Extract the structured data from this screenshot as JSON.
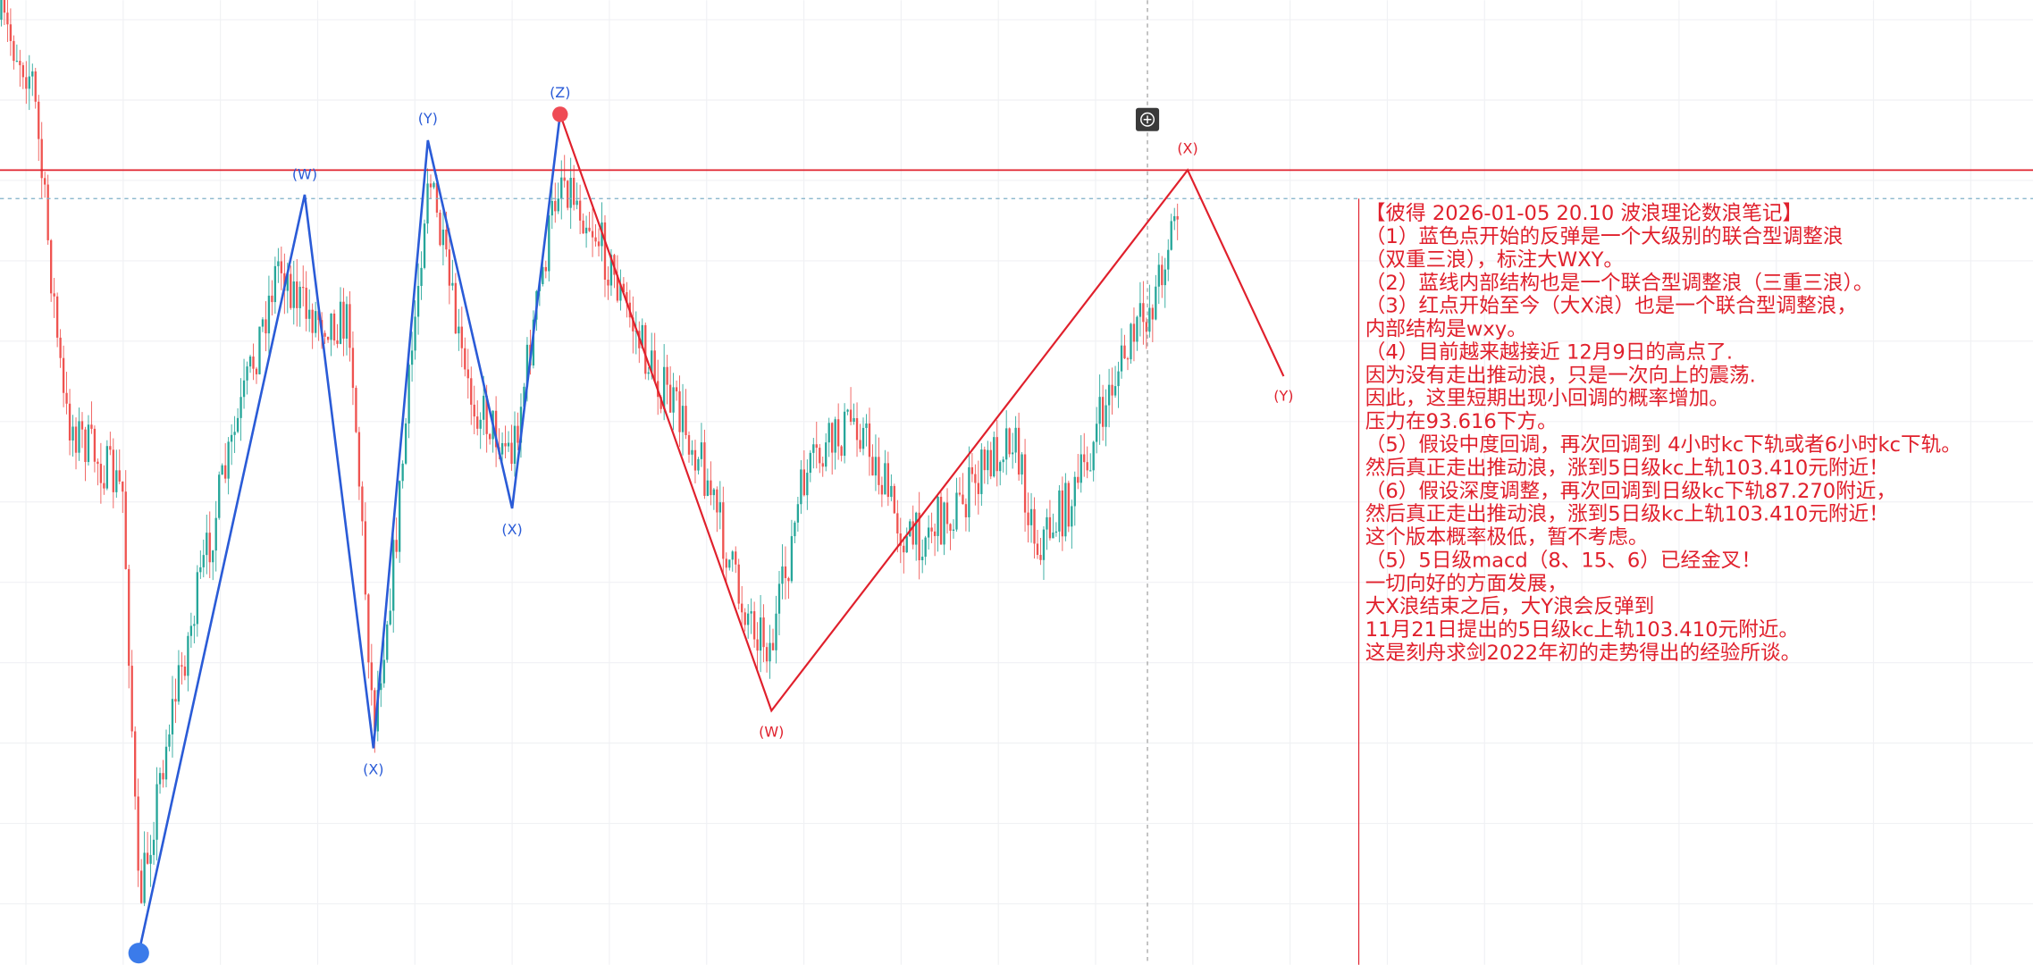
{
  "blue_waves": {
    "labels": [
      "(W)",
      "(X)",
      "(Y)",
      "(X)",
      "(Z)"
    ]
  },
  "red_waves": {
    "labels": [
      "(W)",
      "(X)",
      "(Y)"
    ]
  },
  "note": {
    "lines": [
      "【彼得 2026-01-05 20.10 波浪理论数浪笔记】",
      "（1）蓝色点开始的反弹是一个大级别的联合型调整浪",
      "（双重三浪），标注大WXY。",
      "（2）蓝线内部结构也是一个联合型调整浪（三重三浪）。",
      "（3）红点开始至今（大X浪）也是一个联合型调整浪，",
      "内部结构是wxy。",
      "（4）目前越来越接近 12月9日的高点了.",
      "因为没有走出推动浪，只是一次向上的震荡.",
      "因此，这里短期出现小回调的概率增加。",
      "压力在93.616下方。",
      "（5）假设中度回调，再次回调到 4小时kc下轨或者6小时kc下轨。",
      "然后真正走出推动浪，涨到5日级kc上轨103.410元附近！",
      "（6）假设深度调整，再次回调到日级kc下轨87.270附近，",
      "然后真正走出推动浪，涨到5日级kc上轨103.410元附近！",
      "这个版本概率极低，暂不考虑。",
      "（5）5日级macd（8、15、6）已经金叉！",
      "一切向好的方面发展，",
      "大X浪结束之后，大Y浪会反弹到",
      "11月21日提出的5日级kc上轨103.410元附近。",
      "这是刻舟求剑2022年初的走势得出的经验所谈。"
    ]
  }
}
